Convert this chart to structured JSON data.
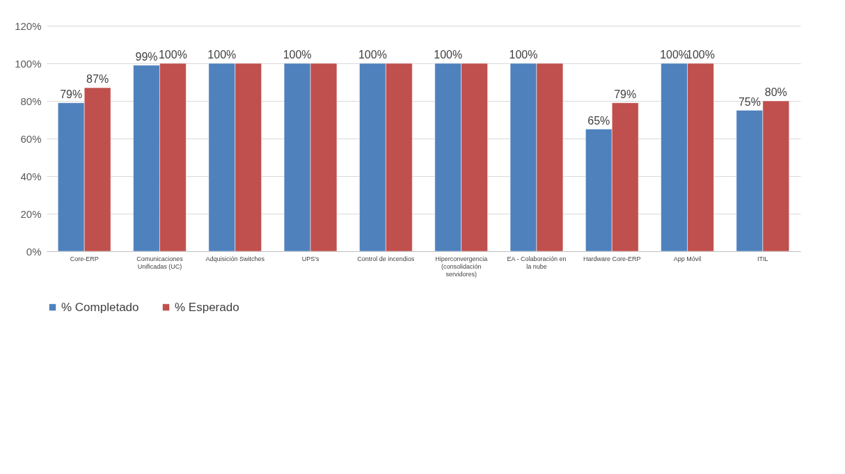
{
  "chart_data": {
    "type": "bar",
    "categories": [
      "Core-ERP",
      "Comunicaciones Unificadas (UC)",
      "Adquisición Switches",
      "UPS's",
      "Control de incendios",
      "Hiperconvergencia (consolidación servidores)",
      "EA - Colaboración en la nube",
      "Hardware Core-ERP",
      "App Móvil",
      "ITIL"
    ],
    "series": [
      {
        "name": "% Completado",
        "color": "#4f81bd",
        "values": [
          79,
          99,
          100,
          100,
          100,
          100,
          100,
          65,
          100,
          75
        ],
        "value_labels": [
          "79%",
          "99%",
          "100%",
          "100%",
          "100%",
          "100%",
          "100%",
          "65%",
          "100%",
          "75%"
        ]
      },
      {
        "name": "% Esperado",
        "color": "#c0504d",
        "values": [
          87,
          100,
          100,
          100,
          100,
          100,
          100,
          79,
          100,
          80
        ],
        "value_labels": [
          "87%",
          "100%",
          null,
          null,
          null,
          null,
          null,
          "79%",
          "100%",
          "80%"
        ]
      }
    ],
    "ylim": [
      0,
      120
    ],
    "yticks": [
      {
        "value": 0,
        "label": "0%"
      },
      {
        "value": 20,
        "label": "20%"
      },
      {
        "value": 40,
        "label": "40%"
      },
      {
        "value": 60,
        "label": "60%"
      },
      {
        "value": 80,
        "label": "80%"
      },
      {
        "value": 100,
        "label": "100%"
      },
      {
        "value": 120,
        "label": "120%"
      }
    ],
    "grid": "y",
    "legend": "bottom"
  }
}
